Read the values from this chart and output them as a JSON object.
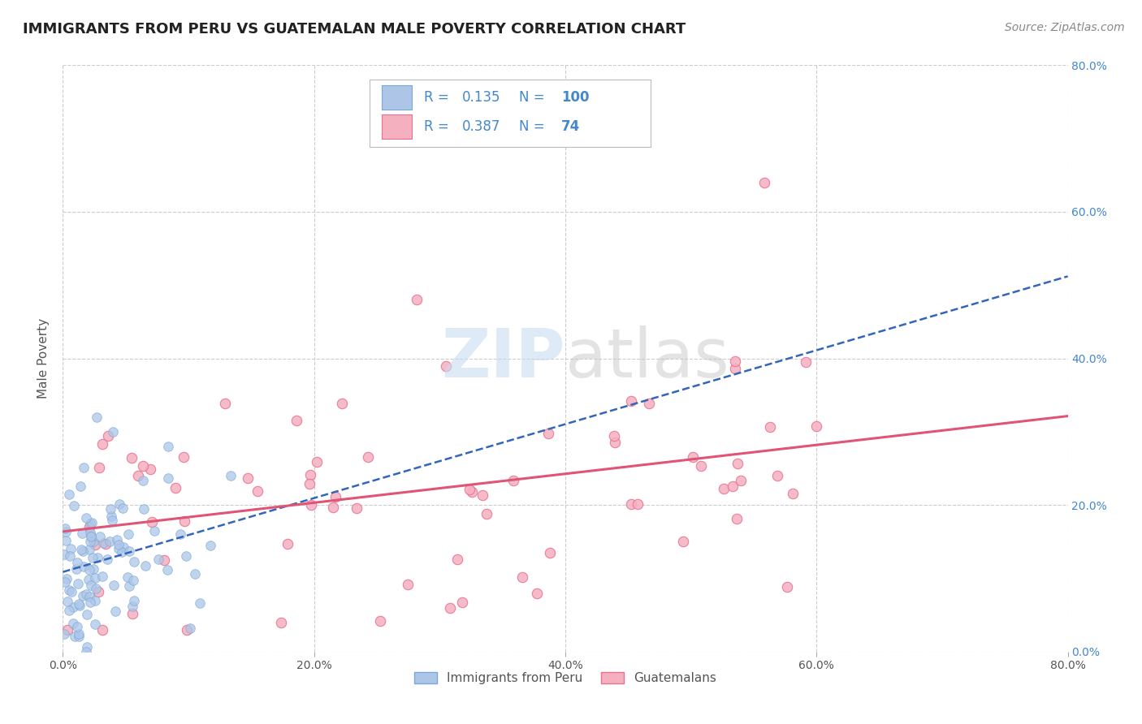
{
  "title": "IMMIGRANTS FROM PERU VS GUATEMALAN MALE POVERTY CORRELATION CHART",
  "source": "Source: ZipAtlas.com",
  "ylabel_left": "Male Poverty",
  "x_min": 0.0,
  "x_max": 0.8,
  "y_min": 0.0,
  "y_max": 0.8,
  "peru_color": "#adc6e8",
  "peru_edge_color": "#7aa8d8",
  "guatemala_color": "#f5b0c0",
  "guatemala_edge_color": "#e87090",
  "peru_line_color": "#3366bb",
  "guatemala_line_color": "#e05575",
  "legend_peru_label": "Immigrants from Peru",
  "legend_guatemala_label": "Guatemalans",
  "R_peru": 0.135,
  "N_peru": 100,
  "R_guatemala": 0.387,
  "N_guatemala": 74,
  "grid_color": "#cccccc",
  "background_color": "#ffffff",
  "title_color": "#222222",
  "legend_text_color": "#4488cc",
  "right_tick_color": "#4488cc",
  "watermark_zip_color": "#c8dcf0",
  "watermark_atlas_color": "#c8c8c8",
  "seed": 7
}
